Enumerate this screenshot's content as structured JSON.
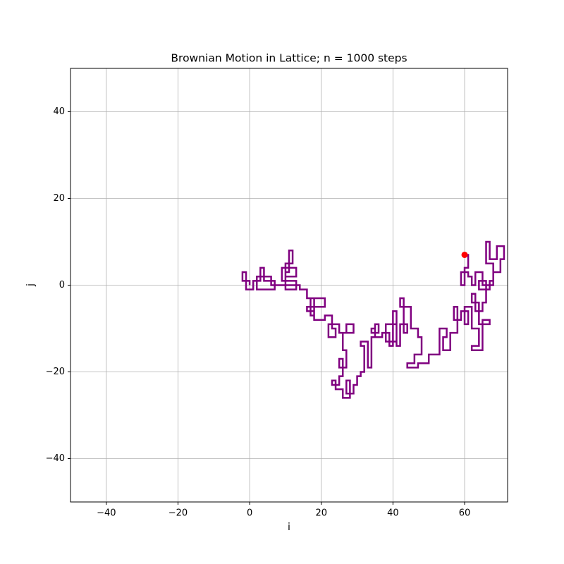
{
  "chart_data": {
    "type": "line",
    "title": "Brownian Motion in Lattice; n = 1000 steps",
    "xlabel": "i",
    "ylabel": "j",
    "xlim": [
      -50,
      72
    ],
    "ylim": [
      -50,
      50
    ],
    "xticks": [
      {
        "value": -40,
        "label": "−40"
      },
      {
        "value": -20,
        "label": "−20"
      },
      0,
      20,
      40,
      60
    ],
    "yticks": [
      {
        "value": -40,
        "label": "−40"
      },
      {
        "value": -20,
        "label": "−20"
      },
      0,
      20,
      40
    ],
    "grid": true,
    "end_marker_color": "#ff0000",
    "series": [
      {
        "color": "#800080",
        "x": [
          0,
          0,
          -2,
          -2,
          -1,
          -1,
          1,
          1,
          3,
          3,
          4,
          4,
          7,
          7,
          2,
          2,
          6,
          6,
          10,
          10,
          11,
          11,
          12,
          12,
          10,
          10,
          13,
          13,
          9,
          9,
          13,
          13,
          10,
          10,
          14,
          14,
          16,
          16,
          21,
          21,
          16,
          16,
          18,
          18,
          17,
          17,
          18,
          18,
          21,
          21,
          23,
          23,
          24,
          24,
          22,
          22,
          25,
          25,
          27,
          27,
          29,
          29,
          26,
          26,
          27,
          27,
          25,
          25,
          26,
          26,
          25,
          25,
          23,
          23,
          24,
          24,
          26,
          26,
          28,
          28,
          27,
          27,
          29,
          29,
          30,
          30,
          31,
          31,
          32,
          32,
          31,
          31,
          33,
          33,
          34,
          34,
          35,
          35,
          34,
          34,
          36,
          36,
          35,
          35,
          37,
          37,
          39,
          39,
          40,
          40,
          41,
          41,
          38,
          38,
          41,
          41,
          42,
          42,
          44,
          44,
          43,
          43,
          42,
          42,
          45,
          45,
          47,
          47,
          48,
          48,
          46,
          46,
          44,
          44,
          47,
          47,
          50,
          50,
          53,
          53,
          55,
          55,
          54,
          54,
          56,
          56,
          58,
          58,
          57,
          57,
          59,
          59,
          61,
          61,
          60,
          60,
          62,
          62,
          64,
          64,
          62,
          62,
          65,
          65,
          67,
          67,
          64,
          64,
          62,
          62,
          63,
          63,
          65,
          65,
          66,
          66,
          64,
          64,
          67,
          67,
          68,
          68,
          66,
          66,
          67,
          67,
          69,
          69,
          71,
          71,
          70,
          70,
          68,
          68,
          65,
          65,
          63,
          63,
          62,
          62,
          61,
          61,
          59,
          59,
          60,
          60,
          61,
          61,
          60
        ],
        "values": [
          0,
          1,
          1,
          3,
          3,
          -1,
          -1,
          1,
          1,
          4,
          4,
          1,
          1,
          -1,
          -1,
          2,
          2,
          0,
          0,
          3,
          3,
          8,
          8,
          5,
          5,
          2,
          2,
          4,
          4,
          1,
          1,
          -1,
          -1,
          0,
          0,
          -1,
          -1,
          -3,
          -3,
          -5,
          -5,
          -6,
          -6,
          -7,
          -7,
          -3,
          -3,
          -8,
          -8,
          -7,
          -7,
          -10,
          -10,
          -12,
          -12,
          -9,
          -9,
          -11,
          -11,
          -9,
          -9,
          -11,
          -11,
          -15,
          -15,
          -19,
          -19,
          -17,
          -17,
          -21,
          -21,
          -23,
          -23,
          -22,
          -22,
          -24,
          -24,
          -26,
          -26,
          -22,
          -22,
          -25,
          -25,
          -23,
          -23,
          -21,
          -21,
          -20,
          -20,
          -14,
          -14,
          -13,
          -13,
          -19,
          -19,
          -12,
          -12,
          -10,
          -10,
          -11,
          -11,
          -9,
          -9,
          -12,
          -12,
          -11,
          -11,
          -14,
          -14,
          -6,
          -6,
          -13,
          -13,
          -9,
          -9,
          -14,
          -14,
          -9,
          -9,
          -11,
          -11,
          -3,
          -3,
          -5,
          -5,
          -10,
          -10,
          -12,
          -12,
          -16,
          -16,
          -18,
          -18,
          -19,
          -19,
          -18,
          -18,
          -16,
          -16,
          -10,
          -10,
          -12,
          -12,
          -15,
          -15,
          -11,
          -11,
          -5,
          -5,
          -8,
          -8,
          -6,
          -6,
          -9,
          -9,
          -5,
          -5,
          -10,
          -10,
          -14,
          -14,
          -15,
          -15,
          -8,
          -8,
          -9,
          -9,
          -4,
          -4,
          -2,
          -2,
          -6,
          -6,
          -4,
          -4,
          1,
          1,
          -1,
          -1,
          1,
          1,
          5,
          5,
          10,
          10,
          6,
          6,
          9,
          9,
          6,
          6,
          3,
          3,
          0,
          0,
          3,
          3,
          0,
          0,
          2,
          2,
          3,
          3,
          0,
          0,
          4,
          4,
          7,
          7
        ]
      }
    ]
  }
}
